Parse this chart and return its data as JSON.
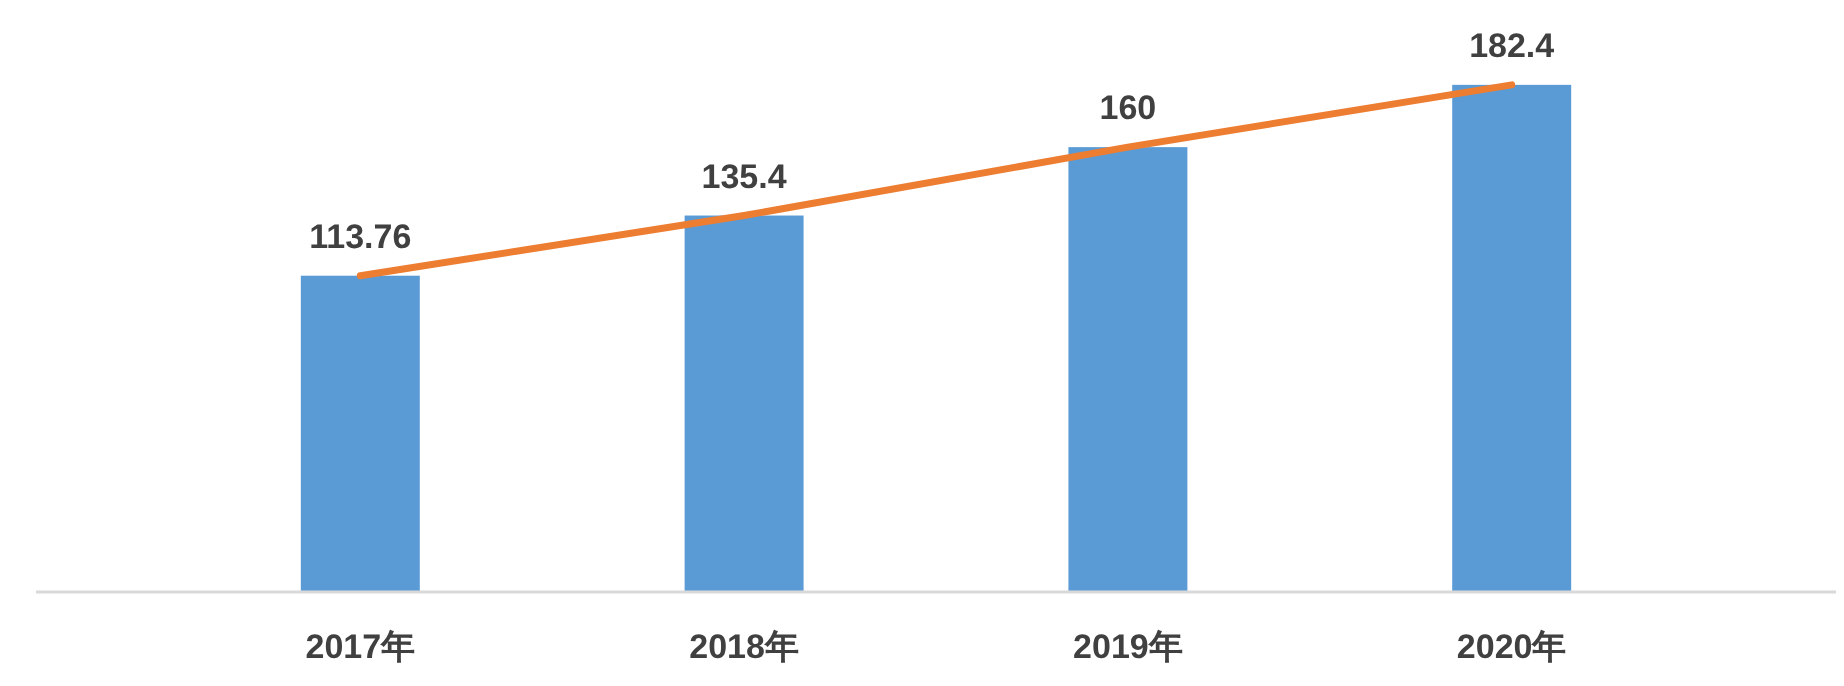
{
  "chart_data": {
    "type": "bar",
    "categories": [
      "2017年",
      "2018年",
      "2019年",
      "2020年"
    ],
    "series": [
      {
        "color": "#5b9bd5",
        "values": [
          113.76,
          135.4,
          160,
          182.4
        ],
        "value_labels": [
          "113.76",
          "135.4",
          "160",
          "182.4"
        ]
      },
      {
        "type": "line",
        "color": "#ed7d31",
        "values": [
          113.76,
          135.4,
          160,
          182.4
        ]
      }
    ]
  }
}
